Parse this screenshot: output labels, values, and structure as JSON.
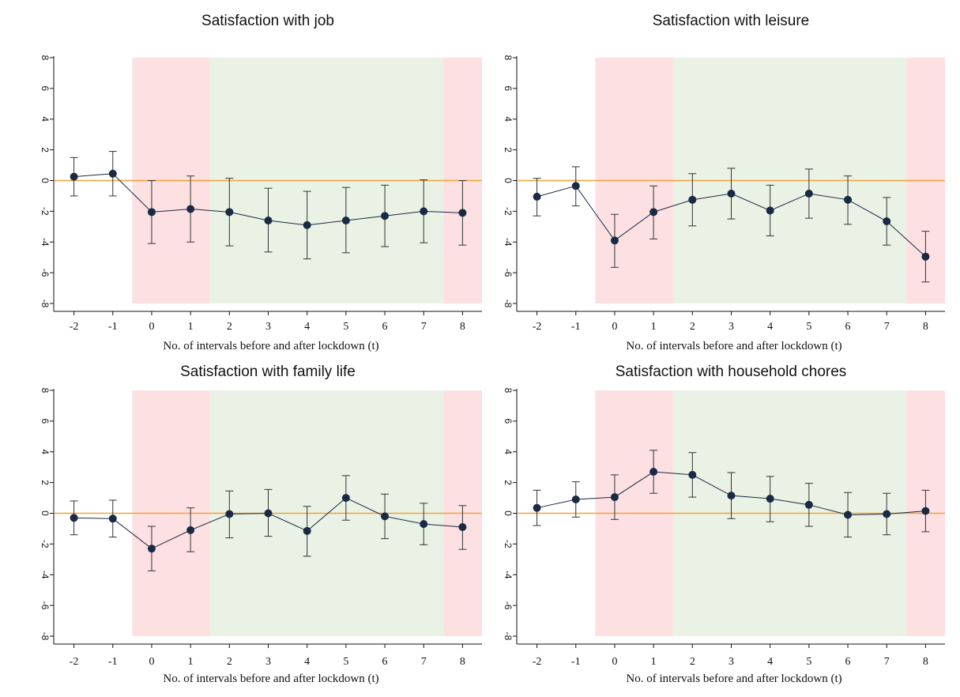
{
  "chart_data": [
    {
      "type": "line",
      "title": "Satisfaction with job",
      "xlabel": "No. of intervals before and after lockdown (t)",
      "ylabel": "",
      "x": [
        -2,
        -1,
        0,
        1,
        2,
        3,
        4,
        5,
        6,
        7,
        8
      ],
      "values": [
        0.25,
        0.45,
        -2.05,
        -1.85,
        -2.05,
        -2.6,
        -2.9,
        -2.6,
        -2.3,
        -2.0,
        -2.1
      ],
      "ci_low": [
        -1.0,
        -1.0,
        -4.1,
        -4.0,
        -4.25,
        -4.65,
        -5.1,
        -4.7,
        -4.3,
        -4.05,
        -4.2
      ],
      "ci_high": [
        1.5,
        1.9,
        0.0,
        0.3,
        0.15,
        -0.5,
        -0.7,
        -0.45,
        -0.3,
        0.05,
        0.0
      ],
      "xlim": [
        -2.5,
        8.5
      ],
      "ylim": [
        -8,
        8
      ],
      "yticks": [
        -8,
        -6,
        -4,
        -2,
        0,
        2,
        4,
        6,
        8
      ],
      "xticks": [
        -2,
        -1,
        0,
        1,
        2,
        3,
        4,
        5,
        6,
        7,
        8
      ],
      "reference_line": 0,
      "shaded_regions": [
        {
          "from": -0.5,
          "to": 1.5,
          "color": "#fde0e2"
        },
        {
          "from": 1.5,
          "to": 7.5,
          "color": "#e9f2e4"
        },
        {
          "from": 7.5,
          "to": 8.5,
          "color": "#fde0e2"
        }
      ]
    },
    {
      "type": "line",
      "title": "Satisfaction with leisure",
      "xlabel": "No. of intervals before and after lockdown (t)",
      "ylabel": "",
      "x": [
        -2,
        -1,
        0,
        1,
        2,
        3,
        4,
        5,
        6,
        7,
        8
      ],
      "values": [
        -1.05,
        -0.35,
        -3.9,
        -2.05,
        -1.25,
        -0.85,
        -1.95,
        -0.85,
        -1.25,
        -2.65,
        -4.95
      ],
      "ci_low": [
        -2.3,
        -1.65,
        -5.65,
        -3.8,
        -2.95,
        -2.5,
        -3.6,
        -2.45,
        -2.85,
        -4.2,
        -6.6
      ],
      "ci_high": [
        0.15,
        0.9,
        -2.2,
        -0.35,
        0.45,
        0.8,
        -0.3,
        0.75,
        0.3,
        -1.1,
        -3.3
      ],
      "xlim": [
        -2.5,
        8.5
      ],
      "ylim": [
        -8,
        8
      ],
      "yticks": [
        -8,
        -6,
        -4,
        -2,
        0,
        2,
        4,
        6,
        8
      ],
      "xticks": [
        -2,
        -1,
        0,
        1,
        2,
        3,
        4,
        5,
        6,
        7,
        8
      ],
      "reference_line": 0,
      "shaded_regions": [
        {
          "from": -0.5,
          "to": 1.5,
          "color": "#fde0e2"
        },
        {
          "from": 1.5,
          "to": 7.5,
          "color": "#e9f2e4"
        },
        {
          "from": 7.5,
          "to": 8.5,
          "color": "#fde0e2"
        }
      ]
    },
    {
      "type": "line",
      "title": "Satisfaction with family life",
      "xlabel": "No. of intervals before and after lockdown (t)",
      "ylabel": "",
      "x": [
        -2,
        -1,
        0,
        1,
        2,
        3,
        4,
        5,
        6,
        7,
        8
      ],
      "values": [
        -0.3,
        -0.35,
        -2.3,
        -1.1,
        -0.05,
        0.0,
        -1.15,
        1.0,
        -0.2,
        -0.7,
        -0.9
      ],
      "ci_low": [
        -1.4,
        -1.55,
        -3.75,
        -2.5,
        -1.6,
        -1.5,
        -2.8,
        -0.45,
        -1.65,
        -2.05,
        -2.35
      ],
      "ci_high": [
        0.8,
        0.85,
        -0.85,
        0.35,
        1.45,
        1.55,
        0.45,
        2.45,
        1.25,
        0.65,
        0.5
      ],
      "xlim": [
        -2.5,
        8.5
      ],
      "ylim": [
        -8,
        8
      ],
      "yticks": [
        -8,
        -6,
        -4,
        -2,
        0,
        2,
        4,
        6,
        8
      ],
      "xticks": [
        -2,
        -1,
        0,
        1,
        2,
        3,
        4,
        5,
        6,
        7,
        8
      ],
      "reference_line": 0,
      "shaded_regions": [
        {
          "from": -0.5,
          "to": 1.5,
          "color": "#fde0e2"
        },
        {
          "from": 1.5,
          "to": 7.5,
          "color": "#e9f2e4"
        },
        {
          "from": 7.5,
          "to": 8.5,
          "color": "#fde0e2"
        }
      ]
    },
    {
      "type": "line",
      "title": "Satisfaction with household chores",
      "xlabel": "No. of intervals before and after lockdown (t)",
      "ylabel": "",
      "x": [
        -2,
        -1,
        0,
        1,
        2,
        3,
        4,
        5,
        6,
        7,
        8
      ],
      "values": [
        0.35,
        0.9,
        1.05,
        2.7,
        2.5,
        1.15,
        0.95,
        0.55,
        -0.1,
        -0.05,
        0.15
      ],
      "ci_low": [
        -0.8,
        -0.25,
        -0.4,
        1.3,
        1.05,
        -0.35,
        -0.55,
        -0.85,
        -1.55,
        -1.4,
        -1.2
      ],
      "ci_high": [
        1.5,
        2.05,
        2.5,
        4.1,
        3.95,
        2.65,
        2.4,
        1.95,
        1.35,
        1.3,
        1.5
      ],
      "xlim": [
        -2.5,
        8.5
      ],
      "ylim": [
        -8,
        8
      ],
      "yticks": [
        -8,
        -6,
        -4,
        -2,
        0,
        2,
        4,
        6,
        8
      ],
      "xticks": [
        -2,
        -1,
        0,
        1,
        2,
        3,
        4,
        5,
        6,
        7,
        8
      ],
      "reference_line": 0,
      "shaded_regions": [
        {
          "from": -0.5,
          "to": 1.5,
          "color": "#fde0e2"
        },
        {
          "from": 1.5,
          "to": 7.5,
          "color": "#e9f2e4"
        },
        {
          "from": 7.5,
          "to": 8.5,
          "color": "#fde0e2"
        }
      ]
    }
  ],
  "colors": {
    "marker": "#1a2a44",
    "line": "#1a2a44",
    "reference_line": "#f0a23a",
    "axis": "#111111"
  }
}
